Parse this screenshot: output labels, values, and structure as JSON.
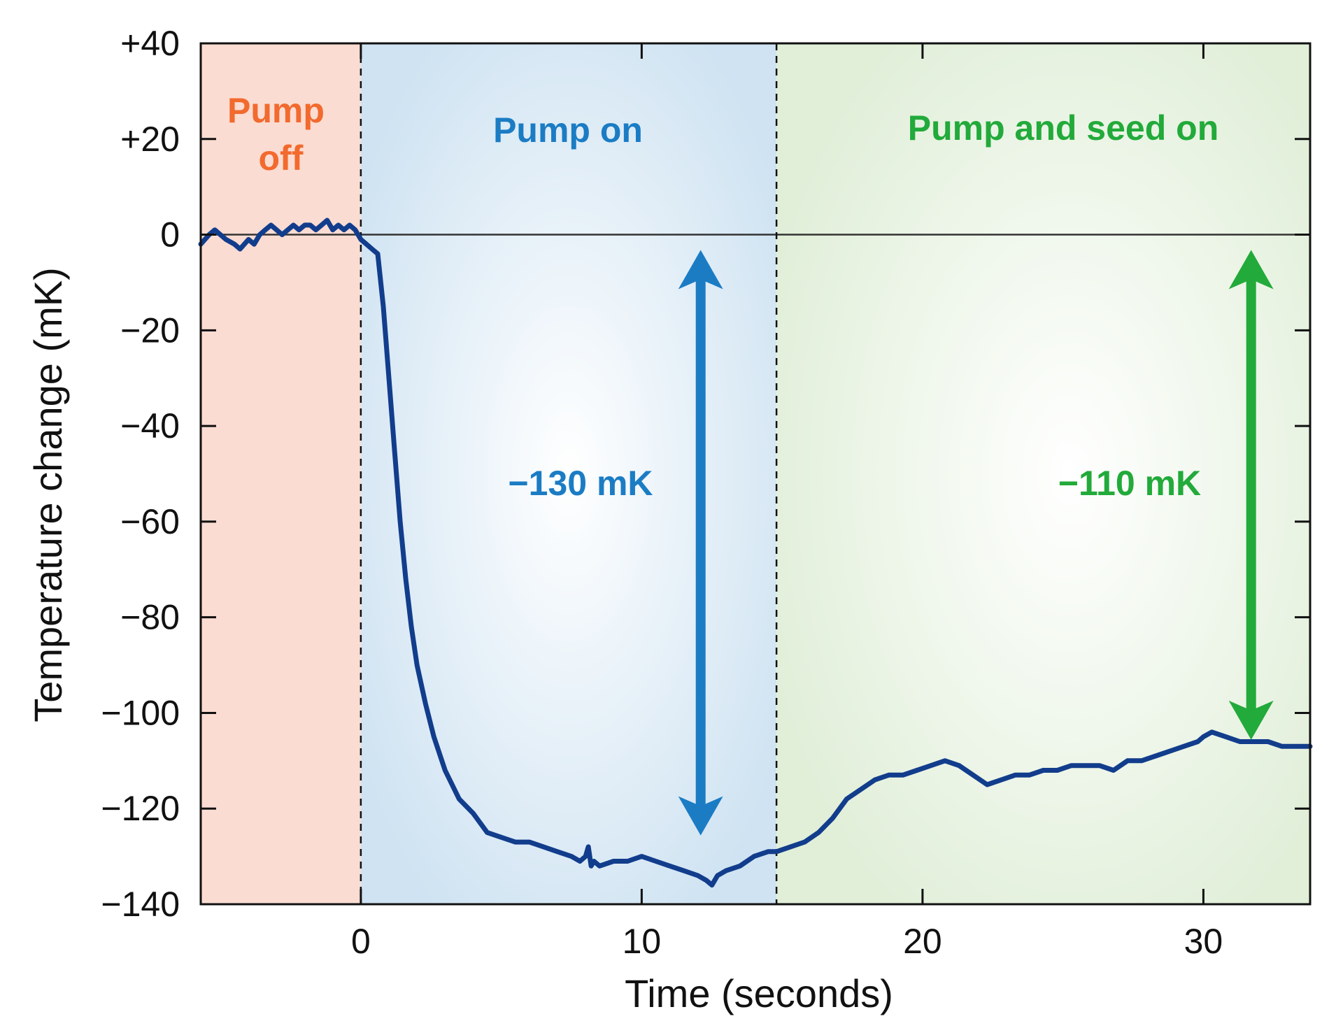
{
  "chart_data": {
    "type": "line",
    "title": "",
    "xlabel": "Time (seconds)",
    "ylabel": "Temperature change (mK)",
    "xlim": [
      -5.7,
      33.8
    ],
    "ylim": [
      -140,
      40
    ],
    "xticks": [
      0,
      10,
      20,
      30
    ],
    "xtick_labels": [
      "0",
      "10",
      "20",
      "30"
    ],
    "yticks": [
      40,
      20,
      0,
      -20,
      -40,
      -60,
      -80,
      -100,
      -120,
      -140
    ],
    "ytick_labels": [
      "+40",
      "+20",
      "0",
      "−20",
      "−40",
      "−60",
      "−80",
      "−100",
      "−120",
      "−140"
    ],
    "regions": [
      {
        "name": "pump-off",
        "label_lines": [
          "Pump",
          "off"
        ],
        "x_start": -5.7,
        "x_end": 0,
        "color": "#fbdcd2",
        "text_color": "#f26a2e"
      },
      {
        "name": "pump-on",
        "label_lines": [
          "Pump on"
        ],
        "x_start": 0,
        "x_end": 14.8,
        "color": "#cfe3f2",
        "text_color": "#1b7cc4"
      },
      {
        "name": "pump-seed-on",
        "label_lines": [
          "Pump and seed on"
        ],
        "x_start": 14.8,
        "x_end": 33.8,
        "color": "#e1efd9",
        "text_color": "#22aa3a"
      }
    ],
    "boundaries": [
      0,
      14.8
    ],
    "reference_line": 0,
    "series": [
      {
        "name": "temperature",
        "color": "#123d8c",
        "x": [
          -5.7,
          -5.4,
          -5.2,
          -5.0,
          -4.8,
          -4.5,
          -4.3,
          -4.0,
          -3.8,
          -3.6,
          -3.4,
          -3.2,
          -3.0,
          -2.8,
          -2.6,
          -2.4,
          -2.2,
          -2.0,
          -1.8,
          -1.6,
          -1.4,
          -1.2,
          -1.0,
          -0.8,
          -0.6,
          -0.4,
          -0.2,
          0.0,
          0.2,
          0.4,
          0.6,
          0.8,
          1.0,
          1.2,
          1.4,
          1.6,
          1.8,
          2.0,
          2.3,
          2.6,
          3.0,
          3.5,
          4.0,
          4.5,
          5.0,
          5.5,
          6.0,
          6.5,
          7.0,
          7.5,
          7.8,
          8.0,
          8.1,
          8.2,
          8.3,
          8.5,
          9.0,
          9.5,
          10.0,
          10.5,
          11.0,
          11.5,
          12.0,
          12.3,
          12.5,
          12.7,
          13.0,
          13.5,
          14.0,
          14.5,
          14.8,
          15.3,
          15.8,
          16.3,
          16.8,
          17.3,
          17.8,
          18.3,
          18.8,
          19.3,
          19.8,
          20.3,
          20.8,
          21.3,
          21.8,
          22.3,
          22.8,
          23.3,
          23.8,
          24.3,
          24.8,
          25.3,
          25.8,
          26.3,
          26.8,
          27.3,
          27.8,
          28.3,
          28.8,
          29.3,
          29.8,
          30.0,
          30.3,
          30.8,
          31.3,
          31.8,
          32.3,
          32.8,
          33.3,
          33.8
        ],
        "y": [
          -2,
          0,
          1,
          0,
          -1,
          -2,
          -3,
          -1,
          -2,
          0,
          1,
          2,
          1,
          0,
          1,
          2,
          1,
          2,
          2,
          1,
          2,
          3,
          1,
          2,
          1,
          2,
          1,
          -1,
          -2,
          -3,
          -4,
          -15,
          -30,
          -45,
          -60,
          -72,
          -82,
          -90,
          -98,
          -105,
          -112,
          -118,
          -121,
          -125,
          -126,
          -127,
          -127,
          -128,
          -129,
          -130,
          -131,
          -130,
          -128,
          -132,
          -131,
          -132,
          -131,
          -131,
          -130,
          -131,
          -132,
          -133,
          -134,
          -135,
          -136,
          -134,
          -133,
          -132,
          -130,
          -129,
          -129,
          -128,
          -127,
          -125,
          -122,
          -118,
          -116,
          -114,
          -113,
          -113,
          -112,
          -111,
          -110,
          -111,
          -113,
          -115,
          -114,
          -113,
          -113,
          -112,
          -112,
          -111,
          -111,
          -111,
          -112,
          -110,
          -110,
          -109,
          -108,
          -107,
          -106,
          -105,
          -104,
          -105,
          -106,
          -106,
          -106,
          -107,
          -107,
          -107
        ]
      }
    ],
    "annotations": [
      {
        "name": "pump-on-arrow",
        "text": "−130 mK",
        "x": 12.1,
        "y_from": -130,
        "y_to": 0,
        "color": "#1b7cc4"
      },
      {
        "name": "pump-seed-arrow",
        "text": "−110 mK",
        "x": 31.7,
        "y_from": -110,
        "y_to": 0,
        "color": "#22aa3a"
      }
    ]
  }
}
